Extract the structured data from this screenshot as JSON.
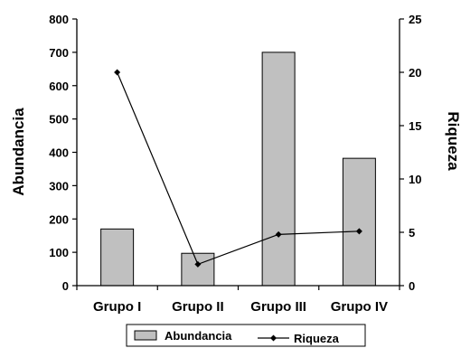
{
  "chart_data": {
    "type": "bar",
    "categories": [
      "Grupo I",
      "Grupo II",
      "Grupo III",
      "Grupo IV"
    ],
    "series": [
      {
        "name": "Abundancia",
        "type": "bar",
        "axis": "left",
        "values": [
          170,
          97,
          700,
          382
        ],
        "color": "#c0c0c0"
      },
      {
        "name": "Riqueza",
        "type": "line",
        "axis": "right",
        "values": [
          20,
          2,
          4.8,
          5.1
        ],
        "color": "#000000"
      }
    ],
    "ylabel": "Abundancia",
    "y2label": "Riqueza",
    "ylim": [
      0,
      800
    ],
    "y2lim": [
      0,
      25
    ],
    "yticks": [
      "0",
      "100",
      "200",
      "300",
      "400",
      "500",
      "600",
      "700",
      "800"
    ],
    "y2ticks": [
      "0",
      "5",
      "10",
      "15",
      "20",
      "25"
    ],
    "grid": false,
    "legend": "bottom"
  }
}
